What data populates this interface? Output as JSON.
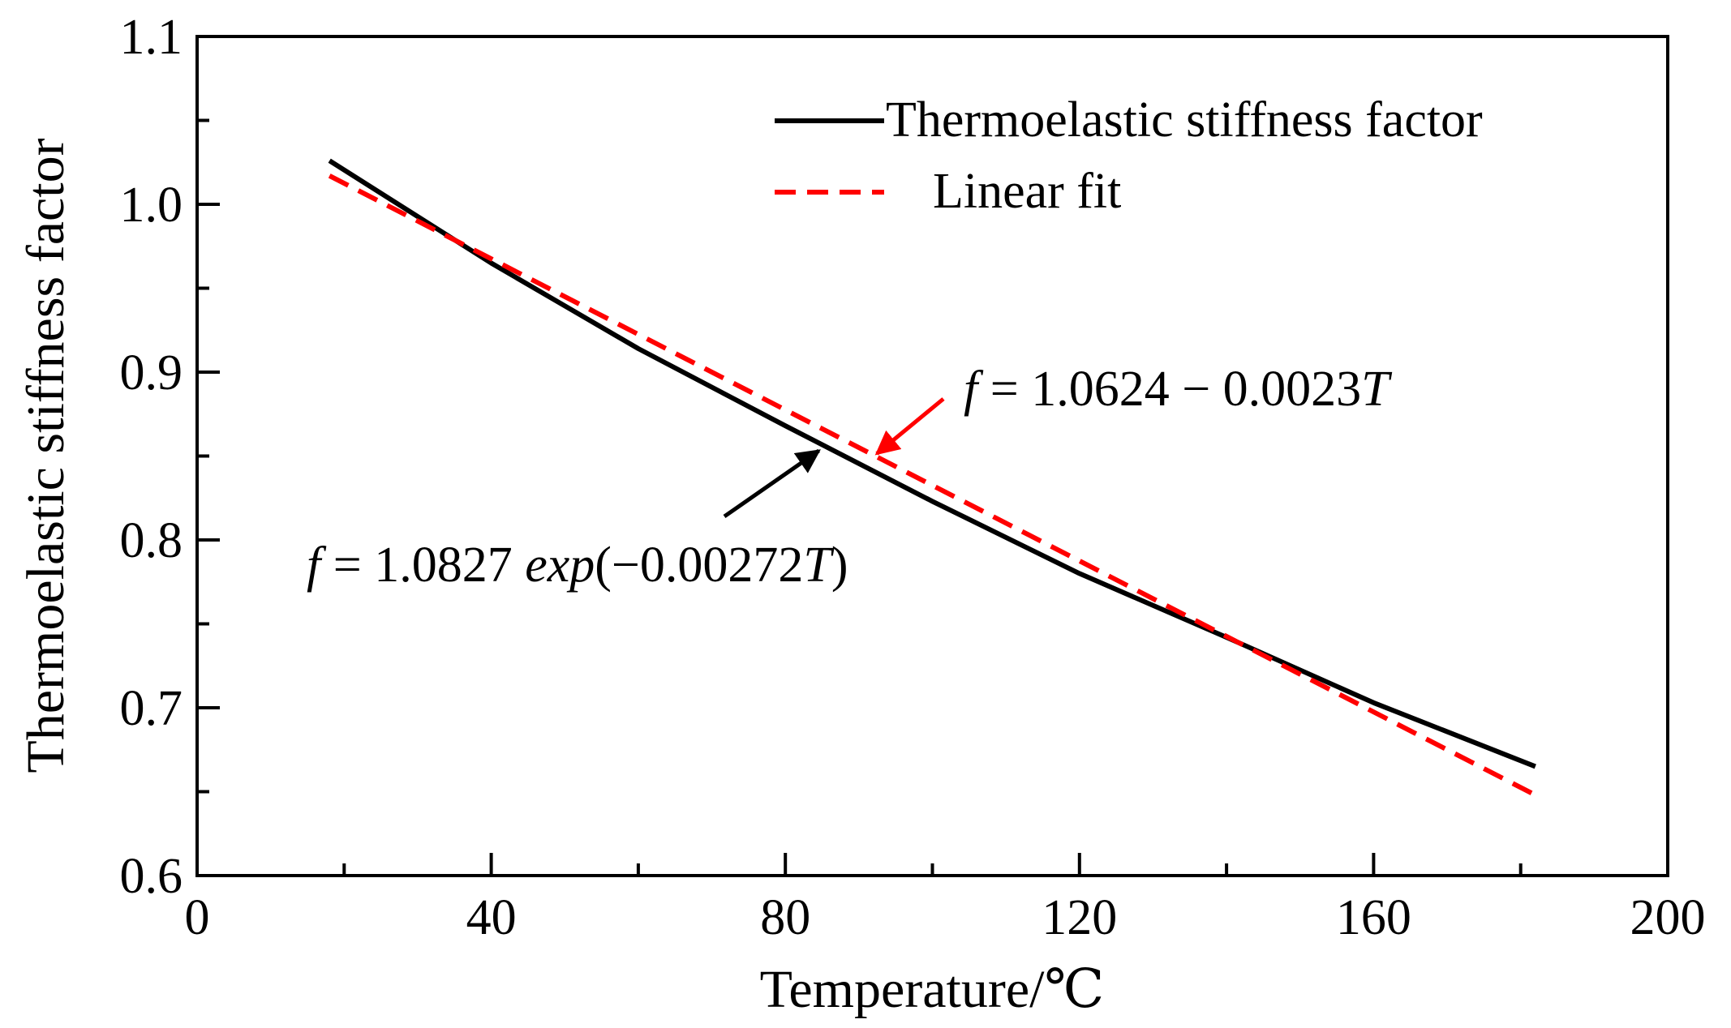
{
  "chart_data": {
    "type": "line",
    "xlabel": "Temperature/℃",
    "ylabel": "Thermoelastic stiffness factor",
    "xlim": [
      0,
      200
    ],
    "ylim": [
      0.6,
      1.1
    ],
    "x_major_ticks": [
      0,
      40,
      80,
      120,
      160,
      200
    ],
    "x_minor_ticks": [
      20,
      60,
      100,
      140,
      180
    ],
    "y_major_ticks": [
      0.6,
      0.7,
      0.8,
      0.9,
      1.0,
      1.1
    ],
    "y_minor_ticks": [
      0.65,
      0.75,
      0.85,
      0.95,
      1.05
    ],
    "x_tick_labels": [
      "0",
      "40",
      "80",
      "120",
      "160",
      "200"
    ],
    "y_tick_labels": [
      "0.6",
      "0.7",
      "0.8",
      "0.9",
      "1.0",
      "1.1"
    ],
    "legend_position": "top-right",
    "series": [
      {
        "name": "Thermoelastic stiffness factor",
        "style": "solid",
        "color": "#000000",
        "x": [
          18,
          40,
          60,
          80,
          100,
          120,
          140,
          160,
          182
        ],
        "y": [
          1.026,
          0.965,
          0.914,
          0.868,
          0.823,
          0.78,
          0.742,
          0.703,
          0.665
        ]
      },
      {
        "name": "Linear fit",
        "style": "dashed",
        "color": "#ff0000",
        "x": [
          18,
          182
        ],
        "y": [
          1.017,
          0.648
        ]
      }
    ],
    "annotations": [
      {
        "id": "linear",
        "parts": [
          {
            "t": "f",
            "i": true
          },
          {
            "t": " = 1.0624 − 0.0023",
            "i": false
          },
          {
            "t": "T",
            "i": true
          }
        ],
        "color": "#ff0000",
        "point": [
          92,
          0.849
        ]
      },
      {
        "id": "exp",
        "parts": [
          {
            "t": "f",
            "i": true
          },
          {
            "t": " = 1.0827 ",
            "i": false
          },
          {
            "t": "exp",
            "i": true
          },
          {
            "t": "(−0.00272",
            "i": false
          },
          {
            "t": "T",
            "i": true
          },
          {
            "t": ")",
            "i": false
          }
        ],
        "color": "#000000",
        "point": [
          84,
          0.858
        ]
      }
    ]
  }
}
